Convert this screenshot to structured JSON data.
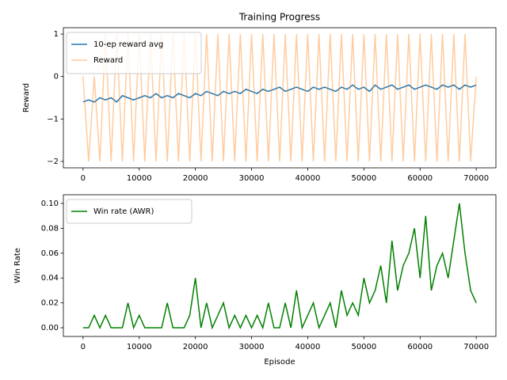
{
  "chart_data": [
    {
      "type": "line",
      "title": "Training Progress",
      "ylabel": "Reward",
      "x": [
        0,
        1000,
        2000,
        3000,
        4000,
        5000,
        6000,
        7000,
        8000,
        9000,
        10000,
        11000,
        12000,
        13000,
        14000,
        15000,
        16000,
        17000,
        18000,
        19000,
        20000,
        21000,
        22000,
        23000,
        24000,
        25000,
        26000,
        27000,
        28000,
        29000,
        30000,
        31000,
        32000,
        33000,
        34000,
        35000,
        36000,
        37000,
        38000,
        39000,
        40000,
        41000,
        42000,
        43000,
        44000,
        45000,
        46000,
        47000,
        48000,
        49000,
        50000,
        51000,
        52000,
        53000,
        54000,
        55000,
        56000,
        57000,
        58000,
        59000,
        60000,
        61000,
        62000,
        63000,
        64000,
        65000,
        66000,
        67000,
        68000,
        69000,
        70000
      ],
      "series": [
        {
          "name": "10-ep reward avg",
          "color": "#1f77b4",
          "alpha": 1,
          "values": [
            -0.6,
            -0.55,
            -0.6,
            -0.5,
            -0.55,
            -0.5,
            -0.6,
            -0.45,
            -0.5,
            -0.55,
            -0.5,
            -0.45,
            -0.5,
            -0.4,
            -0.5,
            -0.45,
            -0.5,
            -0.4,
            -0.45,
            -0.5,
            -0.4,
            -0.45,
            -0.35,
            -0.4,
            -0.45,
            -0.35,
            -0.4,
            -0.35,
            -0.4,
            -0.3,
            -0.35,
            -0.4,
            -0.3,
            -0.35,
            -0.3,
            -0.25,
            -0.35,
            -0.3,
            -0.25,
            -0.3,
            -0.35,
            -0.25,
            -0.3,
            -0.25,
            -0.3,
            -0.35,
            -0.25,
            -0.3,
            -0.2,
            -0.3,
            -0.25,
            -0.35,
            -0.2,
            -0.3,
            -0.25,
            -0.2,
            -0.3,
            -0.25,
            -0.2,
            -0.3,
            -0.25,
            -0.2,
            -0.25,
            -0.3,
            -0.2,
            -0.25,
            -0.2,
            -0.3,
            -0.2,
            -0.25,
            -0.2
          ]
        },
        {
          "name": "Reward",
          "color": "#ff7f0e",
          "alpha": 0.4,
          "values": [
            0,
            -2,
            0,
            -2,
            1,
            -2,
            1,
            -2,
            1,
            -2,
            1,
            -2,
            1,
            -2,
            1,
            -2,
            1,
            -2,
            1,
            -2,
            1,
            -2,
            1,
            -2,
            1,
            -2,
            1,
            -2,
            1,
            -2,
            1,
            -2,
            1,
            -2,
            1,
            -2,
            1,
            -2,
            1,
            -2,
            1,
            -2,
            1,
            -2,
            1,
            -2,
            1,
            -2,
            1,
            -2,
            1,
            -2,
            1,
            -2,
            1,
            -2,
            1,
            -2,
            1,
            -2,
            1,
            -2,
            1,
            -2,
            1,
            -2,
            1,
            -2,
            1,
            -2,
            0
          ]
        }
      ],
      "xlim": [
        -3500,
        73500
      ],
      "xticks": [
        0,
        10000,
        20000,
        30000,
        40000,
        50000,
        60000,
        70000
      ],
      "ylim": [
        -2.15,
        1.15
      ],
      "yticks": [
        {
          "value": -2,
          "label": "−2"
        },
        {
          "value": -1,
          "label": "−1"
        },
        0,
        1
      ],
      "legend": "upper left"
    },
    {
      "type": "line",
      "xlabel": "Episode",
      "ylabel": "Win Rate",
      "x": [
        0,
        1000,
        2000,
        3000,
        4000,
        5000,
        6000,
        7000,
        8000,
        9000,
        10000,
        11000,
        12000,
        13000,
        14000,
        15000,
        16000,
        17000,
        18000,
        19000,
        20000,
        21000,
        22000,
        23000,
        24000,
        25000,
        26000,
        27000,
        28000,
        29000,
        30000,
        31000,
        32000,
        33000,
        34000,
        35000,
        36000,
        37000,
        38000,
        39000,
        40000,
        41000,
        42000,
        43000,
        44000,
        45000,
        46000,
        47000,
        48000,
        49000,
        50000,
        51000,
        52000,
        53000,
        54000,
        55000,
        56000,
        57000,
        58000,
        59000,
        60000,
        61000,
        62000,
        63000,
        64000,
        65000,
        66000,
        67000,
        68000,
        69000,
        70000
      ],
      "series": [
        {
          "name": "Win rate (AWR)",
          "color": "#008000",
          "alpha": 1,
          "values": [
            0,
            0,
            0.01,
            0,
            0.01,
            0,
            0,
            0,
            0.02,
            0,
            0.01,
            0,
            0,
            0,
            0,
            0.02,
            0,
            0,
            0,
            0.01,
            0.04,
            0,
            0.02,
            0,
            0.01,
            0.02,
            0,
            0.01,
            0,
            0.01,
            0,
            0.01,
            0,
            0.02,
            0,
            0,
            0.02,
            0,
            0.03,
            0,
            0.01,
            0.02,
            0,
            0.01,
            0.02,
            0,
            0.03,
            0.01,
            0.02,
            0.01,
            0.04,
            0.02,
            0.03,
            0.05,
            0.02,
            0.07,
            0.03,
            0.05,
            0.06,
            0.08,
            0.04,
            0.09,
            0.03,
            0.05,
            0.06,
            0.04,
            0.07,
            0.1,
            0.06,
            0.03,
            0.02
          ]
        }
      ],
      "xlim": [
        -3500,
        73500
      ],
      "xticks": [
        0,
        10000,
        20000,
        30000,
        40000,
        50000,
        60000,
        70000
      ],
      "ylim": [
        -0.007,
        0.107
      ],
      "yticks": [
        {
          "value": 0,
          "label": "0.00"
        },
        {
          "value": 0.02,
          "label": "0.02"
        },
        {
          "value": 0.04,
          "label": "0.04"
        },
        {
          "value": 0.06,
          "label": "0.06"
        },
        {
          "value": 0.08,
          "label": "0.08"
        },
        {
          "value": 0.1,
          "label": "0.10"
        }
      ],
      "legend": "upper left"
    }
  ]
}
